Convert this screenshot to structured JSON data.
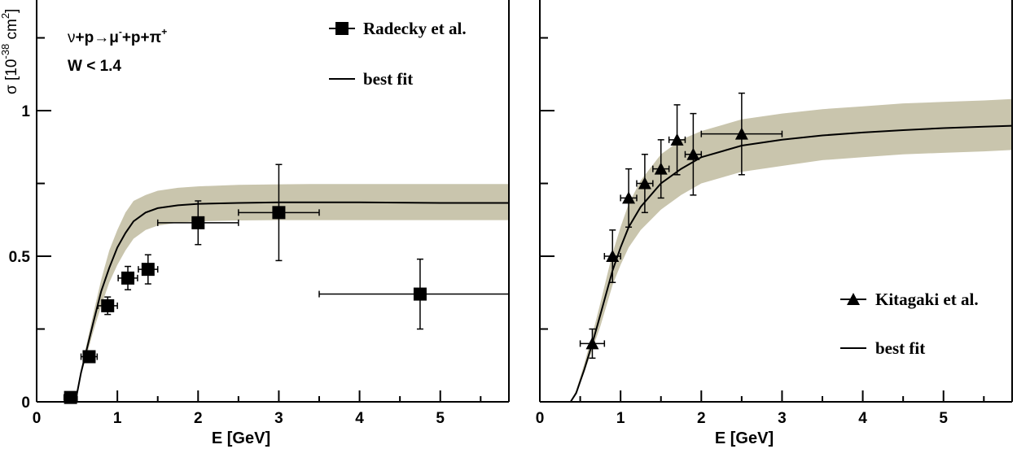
{
  "colors": {
    "band": "#c9c5ad",
    "ink": "#000000",
    "background": "#ffffff"
  },
  "y_axis": {
    "label_prefix": "σ [10",
    "label_exponent": "-38",
    "label_middle": " cm",
    "label_sup2": "2",
    "label_suffix": "]",
    "tick_labels": [
      "0",
      "0.5",
      "1"
    ]
  },
  "annotations": {
    "reaction": {
      "nu": "ν",
      "rest1": "+p→μ",
      "minus": "-",
      "rest2": "+p+π",
      "plus": "+"
    },
    "cut": "W < 1.4"
  },
  "chart_data": [
    {
      "type": "scatter",
      "xlabel": "E [GeV]",
      "ylabel": "σ [10^-38 cm^2]",
      "xlim": [
        0,
        5.85
      ],
      "ylim": [
        0,
        1.38
      ],
      "x_ticks": [
        0,
        1,
        2,
        3,
        4,
        5
      ],
      "x_tick_labels": [
        "0",
        "1",
        "2",
        "3",
        "4",
        "5"
      ],
      "y_ticks": [
        0,
        0.5,
        1
      ],
      "y_tick_labels": [
        "0",
        "0.5",
        "1"
      ],
      "grid": false,
      "legend_position": "top-right",
      "series": [
        {
          "name": "Radecky  et al.",
          "kind": "points",
          "marker": "square",
          "points": [
            {
              "x": 0.42,
              "xerr": 0.08,
              "y": 0.015,
              "yerr": 0.0
            },
            {
              "x": 0.65,
              "xerr": 0.1,
              "y": 0.155,
              "yerr": 0.0
            },
            {
              "x": 0.88,
              "xerr": 0.12,
              "y": 0.33,
              "yerr": 0.03
            },
            {
              "x": 1.13,
              "xerr": 0.12,
              "y": 0.425,
              "yerr": 0.04
            },
            {
              "x": 1.38,
              "xerr": 0.12,
              "y": 0.455,
              "yerr": 0.05
            },
            {
              "x": 2.0,
              "xerr": 0.5,
              "y": 0.615,
              "yerr": 0.075
            },
            {
              "x": 3.0,
              "xerr": 0.5,
              "y": 0.65,
              "yerr": 0.165
            },
            {
              "x": 4.75,
              "xerr": 1.25,
              "y": 0.37,
              "yerr": 0.12
            }
          ]
        },
        {
          "name": "best fit",
          "kind": "line",
          "band": true,
          "x": [
            0.48,
            0.55,
            0.62,
            0.7,
            0.8,
            0.9,
            1.0,
            1.1,
            1.2,
            1.35,
            1.5,
            1.75,
            2.0,
            2.5,
            3.0,
            3.5,
            4.0,
            4.5,
            5.0,
            5.5,
            5.85
          ],
          "y": [
            0.0,
            0.1,
            0.18,
            0.27,
            0.38,
            0.46,
            0.53,
            0.58,
            0.62,
            0.65,
            0.665,
            0.675,
            0.68,
            0.683,
            0.685,
            0.685,
            0.685,
            0.684,
            0.683,
            0.683,
            0.683
          ],
          "band_low": [
            0.0,
            0.09,
            0.16,
            0.24,
            0.33,
            0.41,
            0.47,
            0.52,
            0.56,
            0.59,
            0.605,
            0.615,
            0.62,
            0.623,
            0.624,
            0.624,
            0.624,
            0.624,
            0.624,
            0.624,
            0.624
          ],
          "band_high": [
            0.0,
            0.11,
            0.2,
            0.3,
            0.42,
            0.52,
            0.59,
            0.65,
            0.69,
            0.71,
            0.725,
            0.735,
            0.74,
            0.745,
            0.747,
            0.748,
            0.748,
            0.748,
            0.748,
            0.748,
            0.748
          ]
        }
      ]
    },
    {
      "type": "scatter",
      "xlabel": "E [GeV]",
      "ylabel": "",
      "xlim": [
        0,
        5.85
      ],
      "ylim": [
        0,
        1.38
      ],
      "x_ticks": [
        0,
        1,
        2,
        3,
        4,
        5
      ],
      "x_tick_labels": [
        "0",
        "1",
        "2",
        "3",
        "4",
        "5"
      ],
      "y_ticks": [
        0,
        0.5,
        1
      ],
      "y_tick_labels": [
        "",
        "",
        ""
      ],
      "grid": false,
      "legend_position": "bottom-right",
      "series": [
        {
          "name": "Kitagaki et al.",
          "kind": "points",
          "marker": "triangle",
          "points": [
            {
              "x": 0.65,
              "xerr": 0.15,
              "y": 0.2,
              "yerr": 0.05
            },
            {
              "x": 0.9,
              "xerr": 0.1,
              "y": 0.5,
              "yerr": 0.09
            },
            {
              "x": 1.1,
              "xerr": 0.1,
              "y": 0.7,
              "yerr": 0.1
            },
            {
              "x": 1.3,
              "xerr": 0.1,
              "y": 0.75,
              "yerr": 0.1
            },
            {
              "x": 1.5,
              "xerr": 0.1,
              "y": 0.8,
              "yerr": 0.1
            },
            {
              "x": 1.7,
              "xerr": 0.1,
              "y": 0.9,
              "yerr": 0.12
            },
            {
              "x": 1.9,
              "xerr": 0.1,
              "y": 0.85,
              "yerr": 0.14
            },
            {
              "x": 2.5,
              "xerr": 0.5,
              "y": 0.92,
              "yerr": 0.14
            }
          ]
        },
        {
          "name": "best fit",
          "kind": "line",
          "band": true,
          "x": [
            0.0,
            0.38,
            0.45,
            0.55,
            0.65,
            0.75,
            0.9,
            1.0,
            1.1,
            1.25,
            1.5,
            1.75,
            2.0,
            2.5,
            3.0,
            3.5,
            4.0,
            4.5,
            5.0,
            5.5,
            5.85
          ],
          "y": [
            0.0,
            0.0,
            0.03,
            0.11,
            0.2,
            0.3,
            0.45,
            0.53,
            0.6,
            0.67,
            0.75,
            0.8,
            0.84,
            0.88,
            0.9,
            0.915,
            0.925,
            0.933,
            0.94,
            0.945,
            0.948
          ],
          "band_low": [
            0.0,
            0.0,
            0.03,
            0.1,
            0.18,
            0.26,
            0.4,
            0.47,
            0.53,
            0.59,
            0.66,
            0.71,
            0.75,
            0.79,
            0.81,
            0.83,
            0.84,
            0.85,
            0.855,
            0.86,
            0.865
          ],
          "band_high": [
            0.0,
            0.0,
            0.04,
            0.13,
            0.23,
            0.34,
            0.51,
            0.6,
            0.68,
            0.76,
            0.85,
            0.9,
            0.93,
            0.97,
            0.99,
            1.005,
            1.015,
            1.025,
            1.03,
            1.035,
            1.04
          ]
        }
      ]
    }
  ]
}
